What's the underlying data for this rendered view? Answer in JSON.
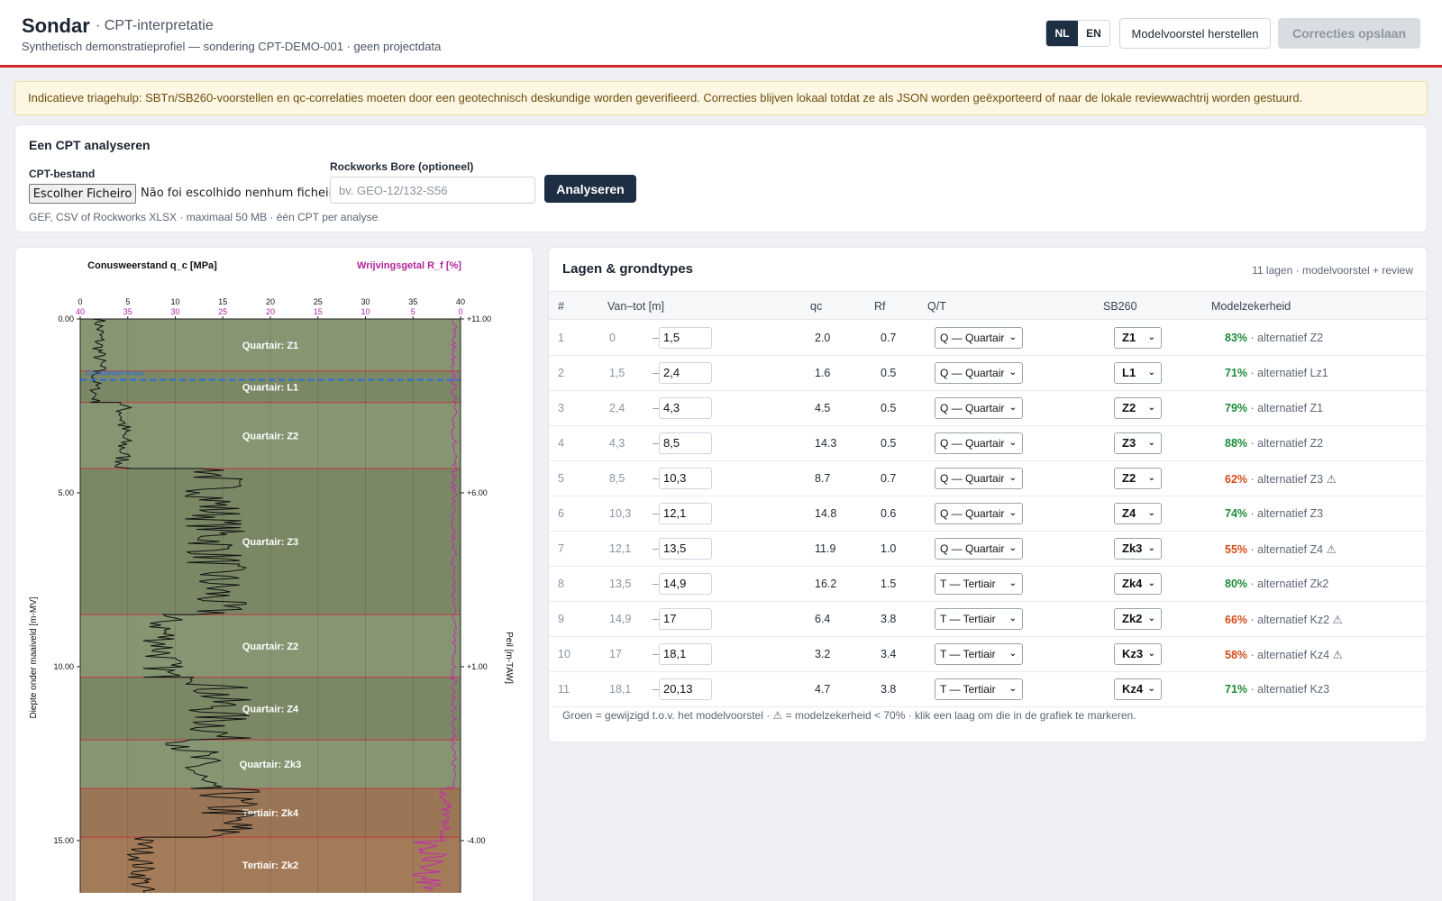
{
  "header": {
    "brand": "Sondar",
    "subtitle": "· CPT-interpretatie",
    "tagline": "Synthetisch demonstratieprofiel — sondering CPT-DEMO-001 · geen projectdata",
    "lang_nl": "NL",
    "lang_en": "EN",
    "reset_label": "Modelvoorstel herstellen",
    "save_label": "Correcties opslaan",
    "accent_color": "#d1262b"
  },
  "warning": "Indicatieve triagehulp: SBTn/SB260-voorstellen en qc-correlaties moeten door een geotechnisch deskundige worden geverifieerd. Correcties blijven lokaal totdat ze als JSON worden geëxporteerd of naar de lokale reviewwachtrij worden gestuurd.",
  "analyse": {
    "title": "Een CPT analyseren",
    "file_label": "CPT-bestand",
    "file_button": "Escolher Ficheiro",
    "file_none": "Não foi escolhido nenhum ficheiro",
    "file_hint": "GEF, CSV of Rockworks XLSX · maximaal 50 MB · één CPT per analyse",
    "bore_label": "Rockworks Bore (optioneel)",
    "bore_placeholder": "bv. GEO-12/132-S56",
    "analyse_button": "Analyseren"
  },
  "chart_data": {
    "type": "line",
    "qc_label": "Conusweerstand q_c [MPa]",
    "rf_label": "Wrijvingsgetal R_f [%]",
    "ylabel": "Diepte onder maaiveld [m-MV]",
    "y2label": "Peil [m-TAW]",
    "qc_ticks": [
      "0",
      "5",
      "10",
      "15",
      "20",
      "25",
      "30",
      "35",
      "40"
    ],
    "rf_ticks": [
      "40",
      "35",
      "30",
      "25",
      "20",
      "15",
      "10",
      "5",
      "0"
    ],
    "depth_ticks": [
      "0.00",
      "5.00",
      "10.00",
      "15.00"
    ],
    "level_ticks": [
      "+11.00",
      "+6.00",
      "+1.00",
      "-4.00"
    ],
    "qc_range": [
      0,
      40
    ],
    "rf_range": [
      40,
      0
    ],
    "depth_range": [
      0,
      16.5
    ],
    "groundwater_label": "Grondwaterniveau",
    "groundwater_depth": 1.75,
    "layers": [
      {
        "from": 0,
        "to": 1.5,
        "label": "Quartair: Z1",
        "color": "#869673",
        "qc_lo": 1.2,
        "qc_hi": 2.8
      },
      {
        "from": 1.5,
        "to": 2.4,
        "label": "Quartair: L1",
        "color": "#7a8866",
        "qc_lo": 1.0,
        "qc_hi": 2.2
      },
      {
        "from": 2.4,
        "to": 4.3,
        "label": "Quartair: Z2",
        "color": "#869673",
        "qc_lo": 3.5,
        "qc_hi": 5.5
      },
      {
        "from": 4.3,
        "to": 8.5,
        "label": "Quartair: Z3",
        "color": "#7a8866",
        "qc_lo": 11,
        "qc_hi": 17.5
      },
      {
        "from": 8.5,
        "to": 10.3,
        "label": "Quartair: Z2",
        "color": "#869673",
        "qc_lo": 6.5,
        "qc_hi": 11
      },
      {
        "from": 10.3,
        "to": 12.1,
        "label": "Quartair: Z4",
        "color": "#7a8866",
        "qc_lo": 11,
        "qc_hi": 18
      },
      {
        "from": 12.1,
        "to": 13.5,
        "label": "Quartair: Zk3",
        "color": "#869673",
        "qc_lo": 9,
        "qc_hi": 15
      },
      {
        "from": 13.5,
        "to": 14.9,
        "label": "Tertiair: Zk4",
        "color": "#9a7656",
        "qc_lo": 12,
        "qc_hi": 19
      },
      {
        "from": 14.9,
        "to": 16.5,
        "label": "Tertiair: Zk2",
        "color": "#a37b59",
        "qc_lo": 5,
        "qc_hi": 8
      }
    ]
  },
  "table": {
    "title": "Lagen & grondtypes",
    "meta": "11 lagen · modelvoorstel + review",
    "headers": {
      "n": "#",
      "range": "Van–tot [m]",
      "qc": "qc",
      "rf": "Rf",
      "qt": "Q/T",
      "sb": "SB260",
      "conf": "Modelzekerheid"
    },
    "rows": [
      {
        "n": "1",
        "from": "0",
        "to": "1,5",
        "qc": "2.0",
        "rf": "0.7",
        "qt": "Q — Quartair",
        "sb": "Z1",
        "conf": "83%",
        "alt": "· alternatief Z2",
        "low": false
      },
      {
        "n": "2",
        "from": "1,5",
        "to": "2,4",
        "qc": "1.6",
        "rf": "0.5",
        "qt": "Q — Quartair",
        "sb": "L1",
        "conf": "71%",
        "alt": "· alternatief Lz1",
        "low": false
      },
      {
        "n": "3",
        "from": "2,4",
        "to": "4,3",
        "qc": "4.5",
        "rf": "0.5",
        "qt": "Q — Quartair",
        "sb": "Z2",
        "conf": "79%",
        "alt": "· alternatief Z1",
        "low": false
      },
      {
        "n": "4",
        "from": "4,3",
        "to": "8,5",
        "qc": "14.3",
        "rf": "0.5",
        "qt": "Q — Quartair",
        "sb": "Z3",
        "conf": "88%",
        "alt": "· alternatief Z2",
        "low": false
      },
      {
        "n": "5",
        "from": "8,5",
        "to": "10,3",
        "qc": "8.7",
        "rf": "0.7",
        "qt": "Q — Quartair",
        "sb": "Z2",
        "conf": "62%",
        "alt": "· alternatief Z3 ⚠",
        "low": true
      },
      {
        "n": "6",
        "from": "10,3",
        "to": "12,1",
        "qc": "14.8",
        "rf": "0.6",
        "qt": "Q — Quartair",
        "sb": "Z4",
        "conf": "74%",
        "alt": "· alternatief Z3",
        "low": false
      },
      {
        "n": "7",
        "from": "12,1",
        "to": "13,5",
        "qc": "11.9",
        "rf": "1.0",
        "qt": "Q — Quartair",
        "sb": "Zk3",
        "conf": "55%",
        "alt": "· alternatief Z4 ⚠",
        "low": true
      },
      {
        "n": "8",
        "from": "13,5",
        "to": "14,9",
        "qc": "16.2",
        "rf": "1.5",
        "qt": "T — Tertiair",
        "sb": "Zk4",
        "conf": "80%",
        "alt": "· alternatief Zk2",
        "low": false
      },
      {
        "n": "9",
        "from": "14,9",
        "to": "17",
        "qc": "6.4",
        "rf": "3.8",
        "qt": "T — Tertiair",
        "sb": "Zk2",
        "conf": "66%",
        "alt": "· alternatief Kz2 ⚠",
        "low": true
      },
      {
        "n": "10",
        "from": "17",
        "to": "18,1",
        "qc": "3.2",
        "rf": "3.4",
        "qt": "T — Tertiair",
        "sb": "Kz3",
        "conf": "58%",
        "alt": "· alternatief Kz4 ⚠",
        "low": true
      },
      {
        "n": "11",
        "from": "18,1",
        "to": "20,13",
        "qc": "4.7",
        "rf": "3.8",
        "qt": "T — Tertiair",
        "sb": "Kz4",
        "conf": "71%",
        "alt": "· alternatief Kz3",
        "low": false
      }
    ],
    "footer": "Groen = gewijzigd t.o.v. het modelvoorstel · ⚠ = modelzekerheid < 70% · klik een laag om die in de grafiek te markeren."
  }
}
